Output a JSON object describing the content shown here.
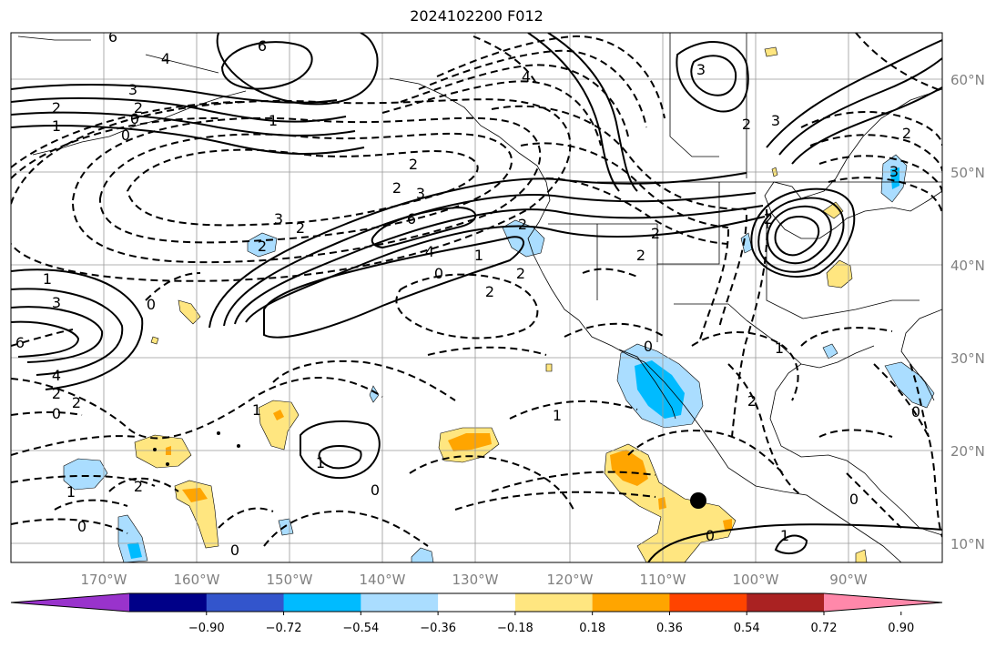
{
  "title": "2024102200 F012",
  "lon_labels": [
    "170°W",
    "160°W",
    "150°W",
    "140°W",
    "130°W",
    "120°W",
    "110°W",
    "100°W",
    "90°W"
  ],
  "lat_labels": [
    "60°N",
    "50°N",
    "40°N",
    "30°N",
    "20°N",
    "10°N"
  ],
  "colorbar": {
    "colors": [
      "#9933cc",
      "#000088",
      "#3355cc",
      "#00bbff",
      "#aaddff",
      "#ffffff",
      "#ffe680",
      "#ffa500",
      "#ff4400",
      "#aa2222",
      "#ff88aa"
    ],
    "tick_labels": [
      "−0.90",
      "−0.72",
      "−0.54",
      "−0.36",
      "−0.18",
      "0.18",
      "0.36",
      "0.54",
      "0.72",
      "0.90"
    ]
  },
  "contour_labels": {
    "nw1": "6",
    "nw2": "4",
    "nw3": "3",
    "nw4": "2",
    "nw5": "1",
    "nw6": "0",
    "nw7": "2",
    "nw8": "0",
    "nw9": "1",
    "ak1": "6",
    "ak2": "4",
    "ak3": "3",
    "ak4": "2",
    "pac1": "6",
    "pac2": "4",
    "pac3": "3",
    "pac4": "2",
    "pac5": "2",
    "pac6": "0",
    "pac7": "2",
    "pac8": "3",
    "pac9": "2",
    "w1": "1",
    "w2": "3",
    "w3": "6",
    "w4": "4",
    "w5": "2",
    "w6": "0",
    "w7": "2",
    "w8": "0",
    "us1": "2",
    "us2": "1",
    "us3": "2",
    "us4": "2",
    "us5": "2",
    "us6": "0",
    "us7": "2",
    "e1": "3",
    "e2": "2",
    "e3": "1",
    "e4": "2",
    "e5": "3",
    "s1": "1",
    "s2": "2",
    "s3": "1",
    "s4": "0",
    "s5": "1",
    "s6": "2",
    "s7": "0",
    "s8": "0",
    "s9": "1",
    "s10": "0",
    "s11": "0",
    "s12": "0",
    "s13": "2"
  }
}
